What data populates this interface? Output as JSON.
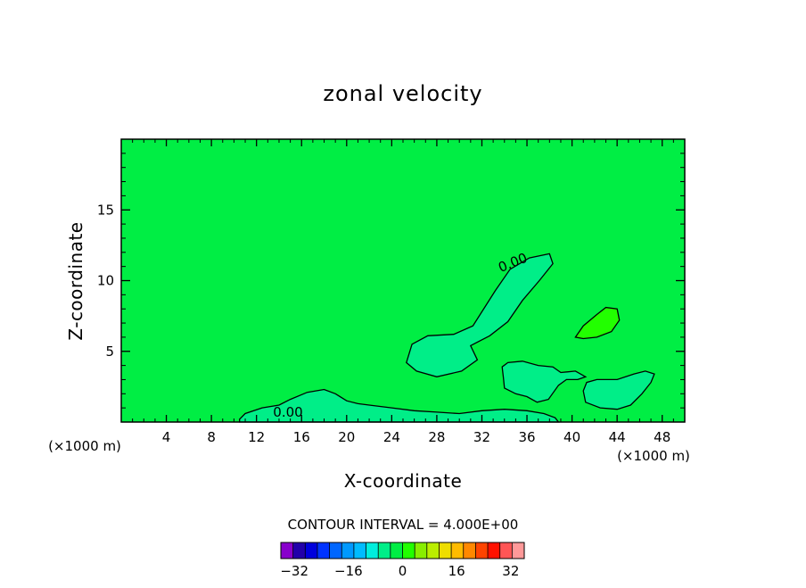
{
  "chart_data": {
    "type": "contour",
    "title": "zonal velocity",
    "xlabel": "X-coordinate",
    "ylabel": "Z-coordinate",
    "x_unit_label": "(×1000 m)",
    "x_unit_label_right": "(×1000 m)",
    "xlim": [
      0,
      50
    ],
    "ylim": [
      0,
      20
    ],
    "x_ticks": [
      4,
      8,
      12,
      16,
      20,
      24,
      28,
      32,
      36,
      40,
      44,
      48
    ],
    "y_ticks": [
      5,
      10,
      15
    ],
    "contour_interval_text": "CONTOUR INTERVAL = 4.000E+00",
    "contour_label": "0.00",
    "colorbar": {
      "min": -36,
      "max": 36,
      "step": 4,
      "tick_labels": [
        "-32",
        "-16",
        "0",
        "16",
        "32"
      ],
      "tick_values": [
        -32,
        -16,
        0,
        16,
        32
      ],
      "colors": [
        "#8800cc",
        "#2200aa",
        "#0000dd",
        "#0033ff",
        "#0066ff",
        "#0099ff",
        "#00bbff",
        "#00eedd",
        "#00ee88",
        "#00ee44",
        "#22ff00",
        "#88ee00",
        "#bbee00",
        "#eedd00",
        "#ffbb00",
        "#ff8800",
        "#ff4400",
        "#ff1100",
        "#ff5555",
        "#ff9999"
      ]
    },
    "background_value_range": [
      0,
      4
    ],
    "regions": [
      {
        "value_range": [
          -4,
          0
        ],
        "desc": "negative lobe, diagonal",
        "polygon": [
          [
            25.3,
            4.2
          ],
          [
            25.8,
            5.5
          ],
          [
            27.2,
            6.1
          ],
          [
            29.5,
            6.2
          ],
          [
            31.2,
            6.8
          ],
          [
            33.2,
            9.3
          ],
          [
            34.5,
            10.8
          ],
          [
            36.2,
            11.6
          ],
          [
            38.0,
            11.9
          ],
          [
            38.3,
            11.2
          ],
          [
            37.1,
            10.0
          ],
          [
            35.6,
            8.6
          ],
          [
            34.3,
            7.1
          ],
          [
            32.7,
            6.1
          ],
          [
            31.0,
            5.4
          ],
          [
            31.6,
            4.4
          ],
          [
            30.2,
            3.6
          ],
          [
            28.0,
            3.2
          ],
          [
            26.2,
            3.6
          ]
        ]
      },
      {
        "value_range": [
          -4,
          0
        ],
        "desc": "cell near x=36",
        "polygon": [
          [
            33.8,
            3.9
          ],
          [
            34.3,
            4.2
          ],
          [
            35.6,
            4.3
          ],
          [
            37.0,
            4.0
          ],
          [
            38.3,
            3.9
          ],
          [
            39.0,
            3.5
          ],
          [
            40.3,
            3.6
          ],
          [
            41.2,
            3.2
          ],
          [
            40.5,
            3.0
          ],
          [
            39.5,
            3.0
          ],
          [
            38.8,
            2.6
          ],
          [
            37.9,
            1.6
          ],
          [
            36.9,
            1.4
          ],
          [
            36.0,
            1.8
          ],
          [
            35.0,
            2.0
          ],
          [
            34.0,
            2.4
          ],
          [
            33.9,
            3.2
          ]
        ]
      },
      {
        "value_range": [
          -4,
          0
        ],
        "desc": "cell near x=45",
        "polygon": [
          [
            41.0,
            2.2
          ],
          [
            41.3,
            2.8
          ],
          [
            42.2,
            3.0
          ],
          [
            44.0,
            3.0
          ],
          [
            45.5,
            3.4
          ],
          [
            46.5,
            3.6
          ],
          [
            47.3,
            3.4
          ],
          [
            47.0,
            2.8
          ],
          [
            46.2,
            2.0
          ],
          [
            45.2,
            1.2
          ],
          [
            44.0,
            0.9
          ],
          [
            42.5,
            1.0
          ],
          [
            41.2,
            1.4
          ]
        ]
      },
      {
        "value_range": [
          -4,
          0
        ],
        "desc": "surface band",
        "polygon": [
          [
            10.5,
            0.2
          ],
          [
            11.0,
            0.6
          ],
          [
            12.5,
            1.0
          ],
          [
            14.0,
            1.2
          ],
          [
            15.0,
            1.6
          ],
          [
            16.5,
            2.1
          ],
          [
            18.0,
            2.3
          ],
          [
            19.0,
            2.0
          ],
          [
            20.0,
            1.5
          ],
          [
            21.0,
            1.3
          ],
          [
            22.0,
            1.2
          ],
          [
            24.0,
            1.0
          ],
          [
            26.0,
            0.8
          ],
          [
            28.0,
            0.7
          ],
          [
            30.0,
            0.6
          ],
          [
            32.0,
            0.8
          ],
          [
            34.0,
            0.9
          ],
          [
            36.0,
            0.8
          ],
          [
            37.5,
            0.6
          ],
          [
            38.5,
            0.3
          ],
          [
            38.8,
            0.0
          ],
          [
            10.5,
            0.0
          ]
        ]
      },
      {
        "value_range": [
          4,
          8
        ],
        "desc": "positive cell near x=43",
        "polygon": [
          [
            40.3,
            6.0
          ],
          [
            41.0,
            6.8
          ],
          [
            42.2,
            7.6
          ],
          [
            43.0,
            8.1
          ],
          [
            44.0,
            8.0
          ],
          [
            44.2,
            7.2
          ],
          [
            43.5,
            6.4
          ],
          [
            42.2,
            6.0
          ],
          [
            41.0,
            5.9
          ]
        ]
      }
    ]
  }
}
